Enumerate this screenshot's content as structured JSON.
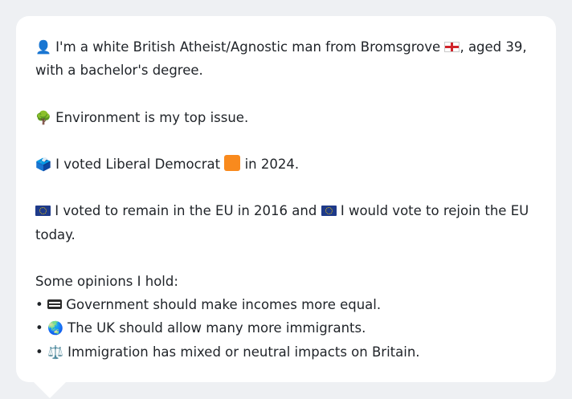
{
  "profile": {
    "intro_pre": "I'm a white British Atheist/Agnostic man from Bromsgrove",
    "intro_post": ", aged 39,",
    "intro_line2": "with a bachelor's degree.",
    "person_icon": "👤",
    "england_flag_icon": "england-flag"
  },
  "issue": {
    "icon": "🌳",
    "text": "Environment is my top issue."
  },
  "vote": {
    "icon": "🗳️",
    "text_pre": "I voted Liberal Democrat",
    "text_post": "in 2024.",
    "party_color": "#f98a1d"
  },
  "eu": {
    "text_pre": "I voted to remain in the EU in 2016 and",
    "text_post": "I would vote to rejoin the EU",
    "text_line2": "today."
  },
  "opinions": {
    "heading": "Some opinions I hold:",
    "bullet": "•",
    "items": [
      {
        "icon": "equals-icon",
        "text": "Government should make incomes more equal."
      },
      {
        "icon": "🌏",
        "text": "The UK should allow many more immigrants."
      },
      {
        "icon": "⚖️",
        "text": "Immigration has mixed or neutral impacts on Britain."
      }
    ]
  }
}
